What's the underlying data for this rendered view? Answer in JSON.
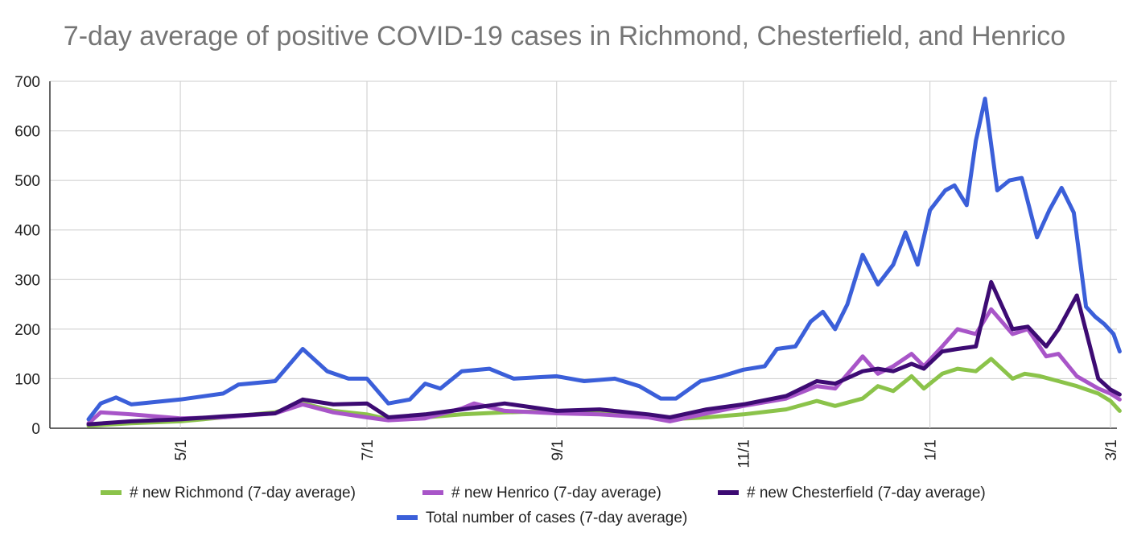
{
  "chart_data": {
    "type": "line",
    "title": "7-day average of positive COVID-19 cases in Richmond, Chesterfield, and Henrico",
    "xlabel": "",
    "ylabel": "",
    "ylim": [
      0,
      700
    ],
    "yticks": [
      0,
      100,
      200,
      300,
      400,
      500,
      600,
      700
    ],
    "x_range": [
      "2020-04-01",
      "2021-03-04"
    ],
    "xticks": [
      {
        "date": "2020-05-01",
        "label": "5/1"
      },
      {
        "date": "2020-07-01",
        "label": "7/1"
      },
      {
        "date": "2020-09-01",
        "label": "9/1"
      },
      {
        "date": "2020-11-01",
        "label": "11/1"
      },
      {
        "date": "2021-01-01",
        "label": "1/1"
      },
      {
        "date": "2021-03-01",
        "label": "3/1"
      }
    ],
    "grid": true,
    "legend_position": "bottom",
    "series": [
      {
        "name": "# new Richmond (7-day average)",
        "color": "#8bc34a",
        "points": [
          [
            "2020-04-01",
            5
          ],
          [
            "2020-04-15",
            10
          ],
          [
            "2020-05-01",
            14
          ],
          [
            "2020-05-15",
            22
          ],
          [
            "2020-06-01",
            32
          ],
          [
            "2020-06-10",
            50
          ],
          [
            "2020-06-20",
            35
          ],
          [
            "2020-07-01",
            28
          ],
          [
            "2020-07-08",
            18
          ],
          [
            "2020-07-20",
            22
          ],
          [
            "2020-08-01",
            28
          ],
          [
            "2020-08-15",
            32
          ],
          [
            "2020-09-01",
            35
          ],
          [
            "2020-09-15",
            30
          ],
          [
            "2020-10-01",
            24
          ],
          [
            "2020-10-08",
            18
          ],
          [
            "2020-10-20",
            22
          ],
          [
            "2020-11-01",
            28
          ],
          [
            "2020-11-15",
            38
          ],
          [
            "2020-11-25",
            55
          ],
          [
            "2020-12-01",
            45
          ],
          [
            "2020-12-10",
            60
          ],
          [
            "2020-12-15",
            85
          ],
          [
            "2020-12-20",
            75
          ],
          [
            "2020-12-26",
            105
          ],
          [
            "2020-12-30",
            80
          ],
          [
            "2021-01-05",
            110
          ],
          [
            "2021-01-10",
            120
          ],
          [
            "2021-01-16",
            115
          ],
          [
            "2021-01-21",
            140
          ],
          [
            "2021-01-28",
            100
          ],
          [
            "2021-02-01",
            110
          ],
          [
            "2021-02-06",
            105
          ],
          [
            "2021-02-12",
            95
          ],
          [
            "2021-02-18",
            85
          ],
          [
            "2021-02-25",
            70
          ],
          [
            "2021-03-01",
            55
          ],
          [
            "2021-03-04",
            35
          ]
        ]
      },
      {
        "name": "# new Henrico (7-day average)",
        "color": "#a855c8",
        "points": [
          [
            "2020-04-01",
            10
          ],
          [
            "2020-04-05",
            32
          ],
          [
            "2020-04-15",
            28
          ],
          [
            "2020-05-01",
            20
          ],
          [
            "2020-05-15",
            22
          ],
          [
            "2020-06-01",
            30
          ],
          [
            "2020-06-10",
            48
          ],
          [
            "2020-06-20",
            32
          ],
          [
            "2020-07-01",
            22
          ],
          [
            "2020-07-08",
            16
          ],
          [
            "2020-07-20",
            20
          ],
          [
            "2020-08-01",
            40
          ],
          [
            "2020-08-05",
            50
          ],
          [
            "2020-08-15",
            35
          ],
          [
            "2020-09-01",
            30
          ],
          [
            "2020-09-15",
            28
          ],
          [
            "2020-10-01",
            22
          ],
          [
            "2020-10-08",
            14
          ],
          [
            "2020-10-20",
            30
          ],
          [
            "2020-11-01",
            45
          ],
          [
            "2020-11-15",
            60
          ],
          [
            "2020-11-25",
            85
          ],
          [
            "2020-12-01",
            80
          ],
          [
            "2020-12-10",
            145
          ],
          [
            "2020-12-15",
            110
          ],
          [
            "2020-12-20",
            125
          ],
          [
            "2020-12-26",
            150
          ],
          [
            "2020-12-30",
            125
          ],
          [
            "2021-01-05",
            165
          ],
          [
            "2021-01-10",
            200
          ],
          [
            "2021-01-16",
            190
          ],
          [
            "2021-01-21",
            240
          ],
          [
            "2021-01-28",
            190
          ],
          [
            "2021-02-02",
            200
          ],
          [
            "2021-02-08",
            145
          ],
          [
            "2021-02-12",
            150
          ],
          [
            "2021-02-18",
            105
          ],
          [
            "2021-02-25",
            80
          ],
          [
            "2021-03-01",
            70
          ],
          [
            "2021-03-04",
            58
          ]
        ]
      },
      {
        "name": "# new Chesterfield (7-day average)",
        "color": "#3d0b73",
        "points": [
          [
            "2020-04-01",
            8
          ],
          [
            "2020-04-15",
            14
          ],
          [
            "2020-05-01",
            18
          ],
          [
            "2020-05-15",
            24
          ],
          [
            "2020-06-01",
            30
          ],
          [
            "2020-06-10",
            58
          ],
          [
            "2020-06-20",
            48
          ],
          [
            "2020-07-01",
            50
          ],
          [
            "2020-07-08",
            22
          ],
          [
            "2020-07-20",
            28
          ],
          [
            "2020-08-01",
            38
          ],
          [
            "2020-08-15",
            50
          ],
          [
            "2020-09-01",
            35
          ],
          [
            "2020-09-15",
            38
          ],
          [
            "2020-10-01",
            28
          ],
          [
            "2020-10-08",
            22
          ],
          [
            "2020-10-20",
            38
          ],
          [
            "2020-11-01",
            48
          ],
          [
            "2020-11-15",
            65
          ],
          [
            "2020-11-25",
            95
          ],
          [
            "2020-12-01",
            90
          ],
          [
            "2020-12-10",
            115
          ],
          [
            "2020-12-15",
            120
          ],
          [
            "2020-12-20",
            115
          ],
          [
            "2020-12-26",
            130
          ],
          [
            "2020-12-30",
            120
          ],
          [
            "2021-01-05",
            155
          ],
          [
            "2021-01-10",
            160
          ],
          [
            "2021-01-16",
            165
          ],
          [
            "2021-01-21",
            295
          ],
          [
            "2021-01-28",
            200
          ],
          [
            "2021-02-02",
            205
          ],
          [
            "2021-02-08",
            165
          ],
          [
            "2021-02-12",
            200
          ],
          [
            "2021-02-18",
            268
          ],
          [
            "2021-02-25",
            100
          ],
          [
            "2021-03-01",
            78
          ],
          [
            "2021-03-04",
            68
          ]
        ]
      },
      {
        "name": "Total number of cases (7-day average)",
        "color": "#3b5fd9",
        "points": [
          [
            "2020-04-01",
            18
          ],
          [
            "2020-04-05",
            50
          ],
          [
            "2020-04-10",
            62
          ],
          [
            "2020-04-15",
            48
          ],
          [
            "2020-05-01",
            58
          ],
          [
            "2020-05-15",
            70
          ],
          [
            "2020-05-20",
            88
          ],
          [
            "2020-06-01",
            95
          ],
          [
            "2020-06-10",
            160
          ],
          [
            "2020-06-18",
            115
          ],
          [
            "2020-06-25",
            100
          ],
          [
            "2020-07-01",
            100
          ],
          [
            "2020-07-08",
            50
          ],
          [
            "2020-07-15",
            58
          ],
          [
            "2020-07-20",
            90
          ],
          [
            "2020-07-25",
            80
          ],
          [
            "2020-08-01",
            115
          ],
          [
            "2020-08-10",
            120
          ],
          [
            "2020-08-18",
            100
          ],
          [
            "2020-09-01",
            105
          ],
          [
            "2020-09-10",
            95
          ],
          [
            "2020-09-20",
            100
          ],
          [
            "2020-09-28",
            85
          ],
          [
            "2020-10-05",
            60
          ],
          [
            "2020-10-10",
            60
          ],
          [
            "2020-10-18",
            95
          ],
          [
            "2020-10-25",
            105
          ],
          [
            "2020-11-01",
            118
          ],
          [
            "2020-11-08",
            125
          ],
          [
            "2020-11-12",
            160
          ],
          [
            "2020-11-18",
            165
          ],
          [
            "2020-11-23",
            215
          ],
          [
            "2020-11-27",
            235
          ],
          [
            "2020-12-01",
            200
          ],
          [
            "2020-12-05",
            250
          ],
          [
            "2020-12-10",
            350
          ],
          [
            "2020-12-15",
            290
          ],
          [
            "2020-12-20",
            330
          ],
          [
            "2020-12-24",
            395
          ],
          [
            "2020-12-28",
            330
          ],
          [
            "2021-01-01",
            440
          ],
          [
            "2021-01-06",
            480
          ],
          [
            "2021-01-09",
            490
          ],
          [
            "2021-01-13",
            450
          ],
          [
            "2021-01-16",
            580
          ],
          [
            "2021-01-19",
            665
          ],
          [
            "2021-01-23",
            480
          ],
          [
            "2021-01-27",
            500
          ],
          [
            "2021-01-31",
            505
          ],
          [
            "2021-02-05",
            385
          ],
          [
            "2021-02-09",
            440
          ],
          [
            "2021-02-13",
            485
          ],
          [
            "2021-02-17",
            435
          ],
          [
            "2021-02-21",
            245
          ],
          [
            "2021-02-24",
            225
          ],
          [
            "2021-02-27",
            210
          ],
          [
            "2021-03-02",
            190
          ],
          [
            "2021-03-04",
            155
          ]
        ]
      }
    ]
  }
}
